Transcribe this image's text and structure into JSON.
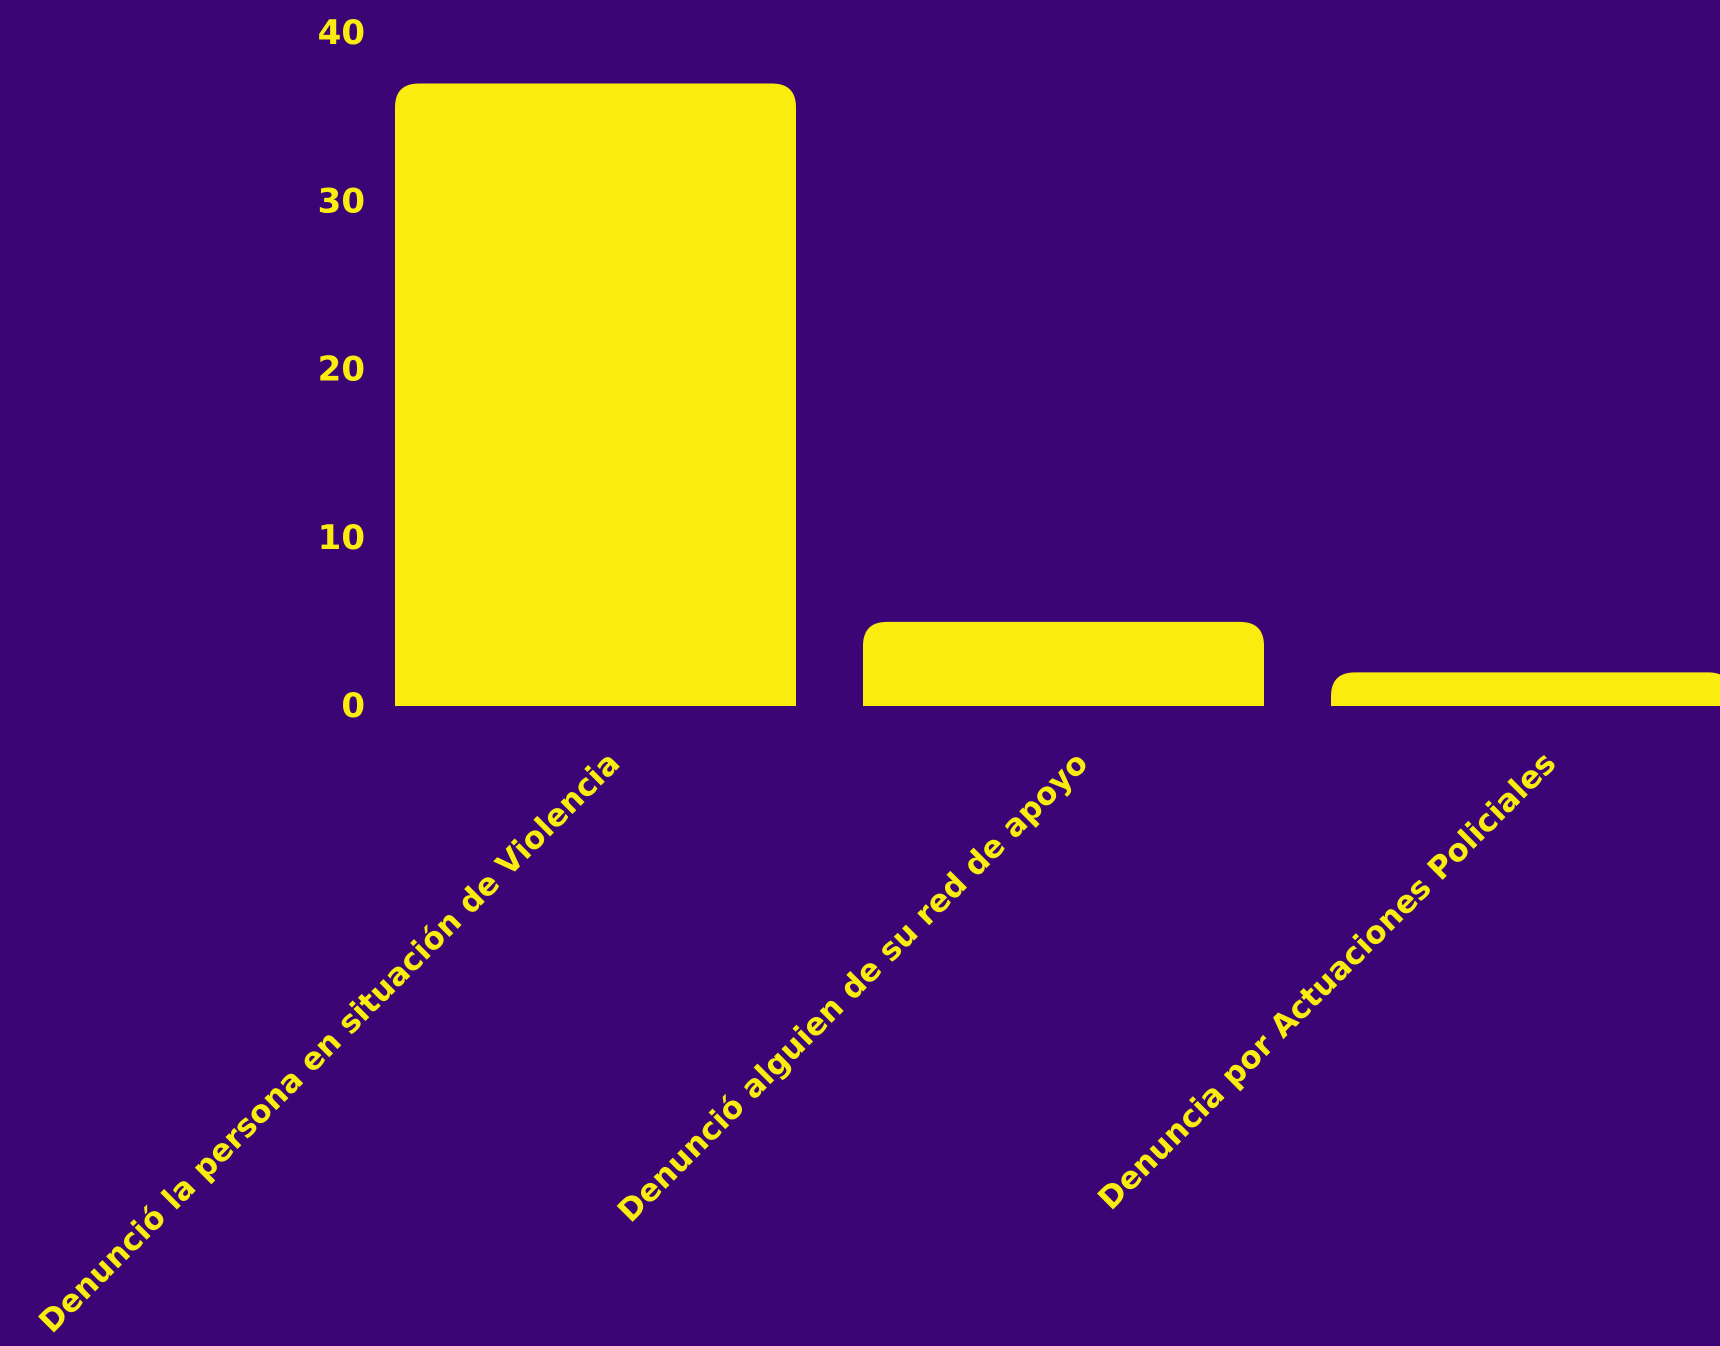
{
  "colors": {
    "background": "#3c0575",
    "bar": "#fbec0f",
    "text": "#fbec0f"
  },
  "chart_data": {
    "type": "bar",
    "categories": [
      "Denunció la persona en situación de Violencia",
      "Denunció alguien de su red de apoyo",
      "Denuncia por Actuaciones Policiales"
    ],
    "values": [
      37,
      5,
      2
    ],
    "ylim": [
      0,
      40
    ],
    "yticks": [
      0,
      10,
      20,
      30,
      40
    ],
    "grid": false,
    "legend": "none",
    "title": "",
    "xlabel": "",
    "ylabel": ""
  }
}
